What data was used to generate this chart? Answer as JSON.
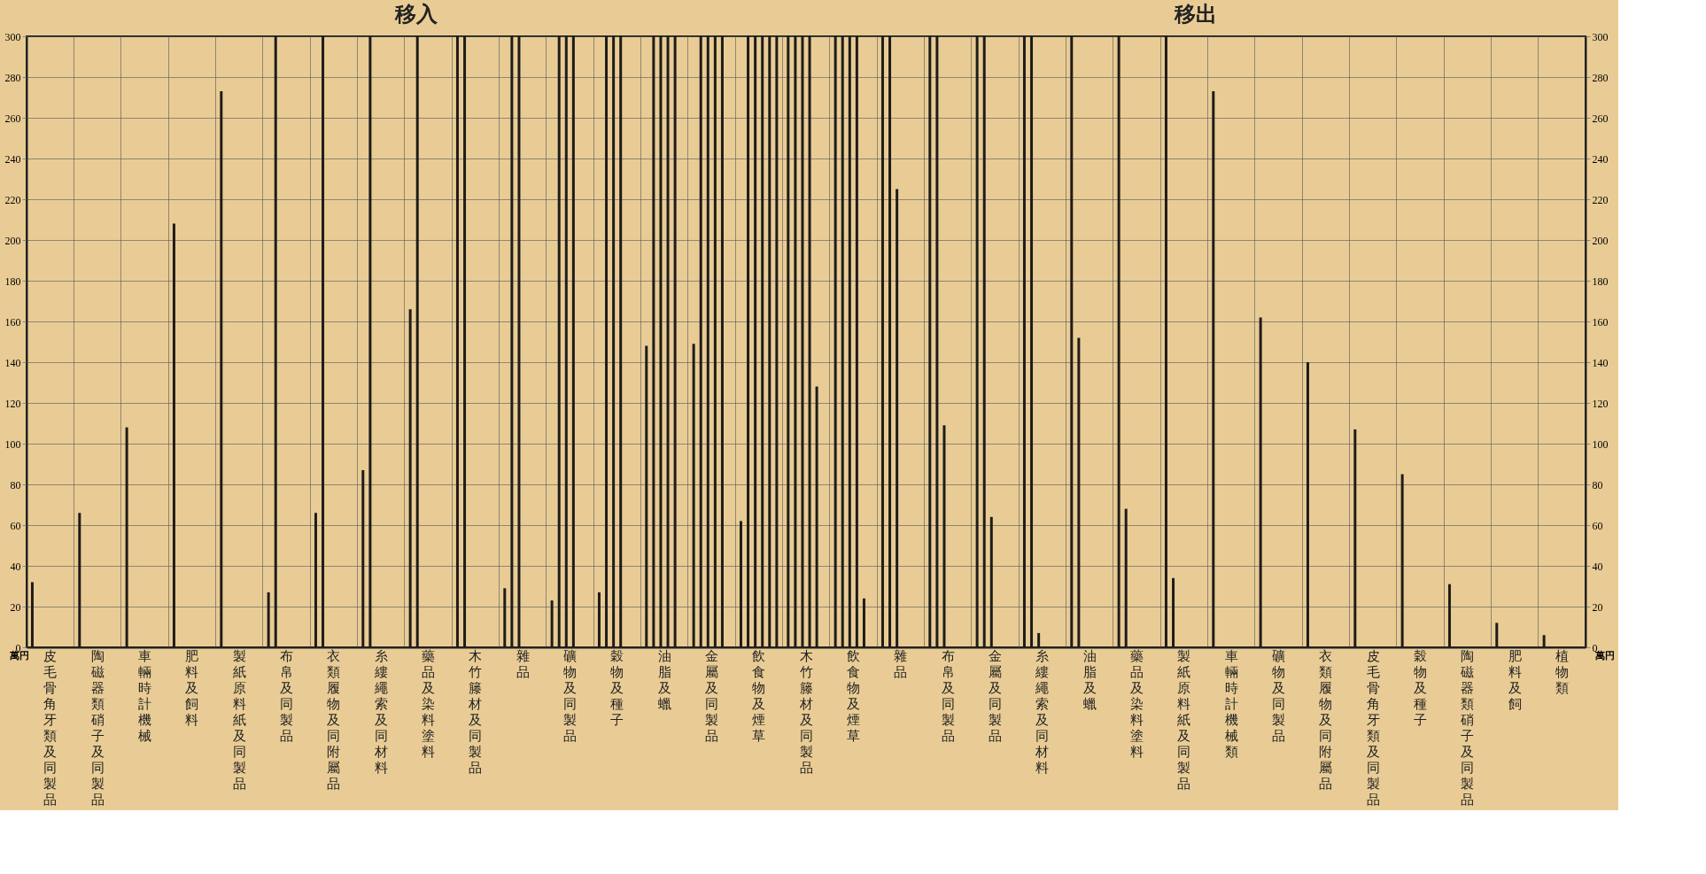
{
  "chart_data": {
    "type": "bar",
    "categories": [
      "皮毛骨角牙類及同製品",
      "陶磁器類硝子及同製品",
      "車輛時計機械",
      "肥料及飼料",
      "製紙原料紙及同製品",
      "布帛及同製品",
      "衣類履物及同附屬品",
      "糸縷繩索及同材料",
      "藥品及染料塗料",
      "木竹籐材及同製品",
      "雜品",
      "礦物及同製品",
      "穀物及種子",
      "油脂及蠟",
      "金屬及同製品",
      "飲食物及煙草",
      "木竹籐材及同製品",
      "飲食物及煙草",
      "雜品",
      "布帛及同製品",
      "金屬及同製品",
      "糸縷繩索及同材料",
      "油脂及蠟",
      "藥品及染料塗料",
      "製紙原料紙及同製品",
      "車輛時計機械類",
      "礦物及同製品",
      "衣類履物及同附屬品",
      "皮毛骨角牙類及同製品",
      "穀物及種子",
      "陶磁器類硝子及同製品",
      "肥料及飼",
      "植物類"
    ],
    "series": [
      {
        "color": "#1e1c1a",
        "values": [
          32,
          66,
          108,
          208,
          273,
          27,
          66,
          87,
          166,
          300,
          29,
          23,
          27,
          148,
          149,
          62,
          300,
          300,
          300,
          300,
          300,
          300,
          300,
          300,
          300,
          273,
          162,
          140,
          107,
          85,
          31,
          12,
          6
        ]
      },
      {
        "color": "#1e1c1a",
        "values": [
          null,
          null,
          null,
          null,
          null,
          300,
          300,
          300,
          300,
          300,
          300,
          300,
          300,
          300,
          300,
          300,
          300,
          300,
          300,
          300,
          300,
          300,
          152,
          68,
          34,
          null,
          null,
          null,
          null,
          null,
          null,
          null,
          null
        ]
      },
      {
        "color": "#1e1c1a",
        "values": [
          null,
          null,
          null,
          null,
          null,
          null,
          null,
          null,
          null,
          null,
          300,
          300,
          300,
          300,
          300,
          300,
          300,
          300,
          225,
          109,
          64,
          7,
          null,
          null,
          null,
          null,
          null,
          null,
          null,
          null,
          null,
          null,
          null
        ]
      },
      {
        "color": "#1e1c1a",
        "values": [
          null,
          null,
          null,
          null,
          null,
          null,
          null,
          null,
          null,
          null,
          null,
          300,
          300,
          300,
          300,
          300,
          300,
          300,
          null,
          null,
          null,
          null,
          null,
          null,
          null,
          null,
          null,
          null,
          null,
          null,
          null,
          null,
          null
        ]
      },
      {
        "color": "#1e1c1a",
        "values": [
          null,
          null,
          null,
          null,
          null,
          null,
          null,
          null,
          null,
          null,
          null,
          null,
          null,
          300,
          300,
          300,
          128,
          24,
          null,
          null,
          null,
          null,
          null,
          null,
          null,
          null,
          null,
          null,
          null,
          null,
          null,
          null,
          null
        ]
      },
      {
        "color": "#1e1c1a",
        "values": [
          null,
          null,
          null,
          null,
          null,
          null,
          null,
          null,
          null,
          null,
          null,
          null,
          null,
          null,
          null,
          300,
          null,
          null,
          null,
          null,
          null,
          null,
          null,
          null,
          null,
          null,
          null,
          null,
          null,
          null,
          null,
          null,
          null
        ]
      }
    ],
    "ylabel": "萬円",
    "y2label": "萬円",
    "ylim": [
      0,
      300
    ],
    "yticks": [
      0,
      20,
      40,
      60,
      80,
      100,
      120,
      140,
      160,
      180,
      200,
      220,
      240,
      260,
      280,
      300
    ],
    "y2lim": [
      0,
      300
    ],
    "y2ticks": [
      0,
      20,
      40,
      60,
      80,
      100,
      120,
      140,
      160,
      180,
      200,
      220,
      240,
      260,
      280,
      300
    ],
    "annotations": [
      "移入",
      "移出"
    ],
    "grid": true
  }
}
